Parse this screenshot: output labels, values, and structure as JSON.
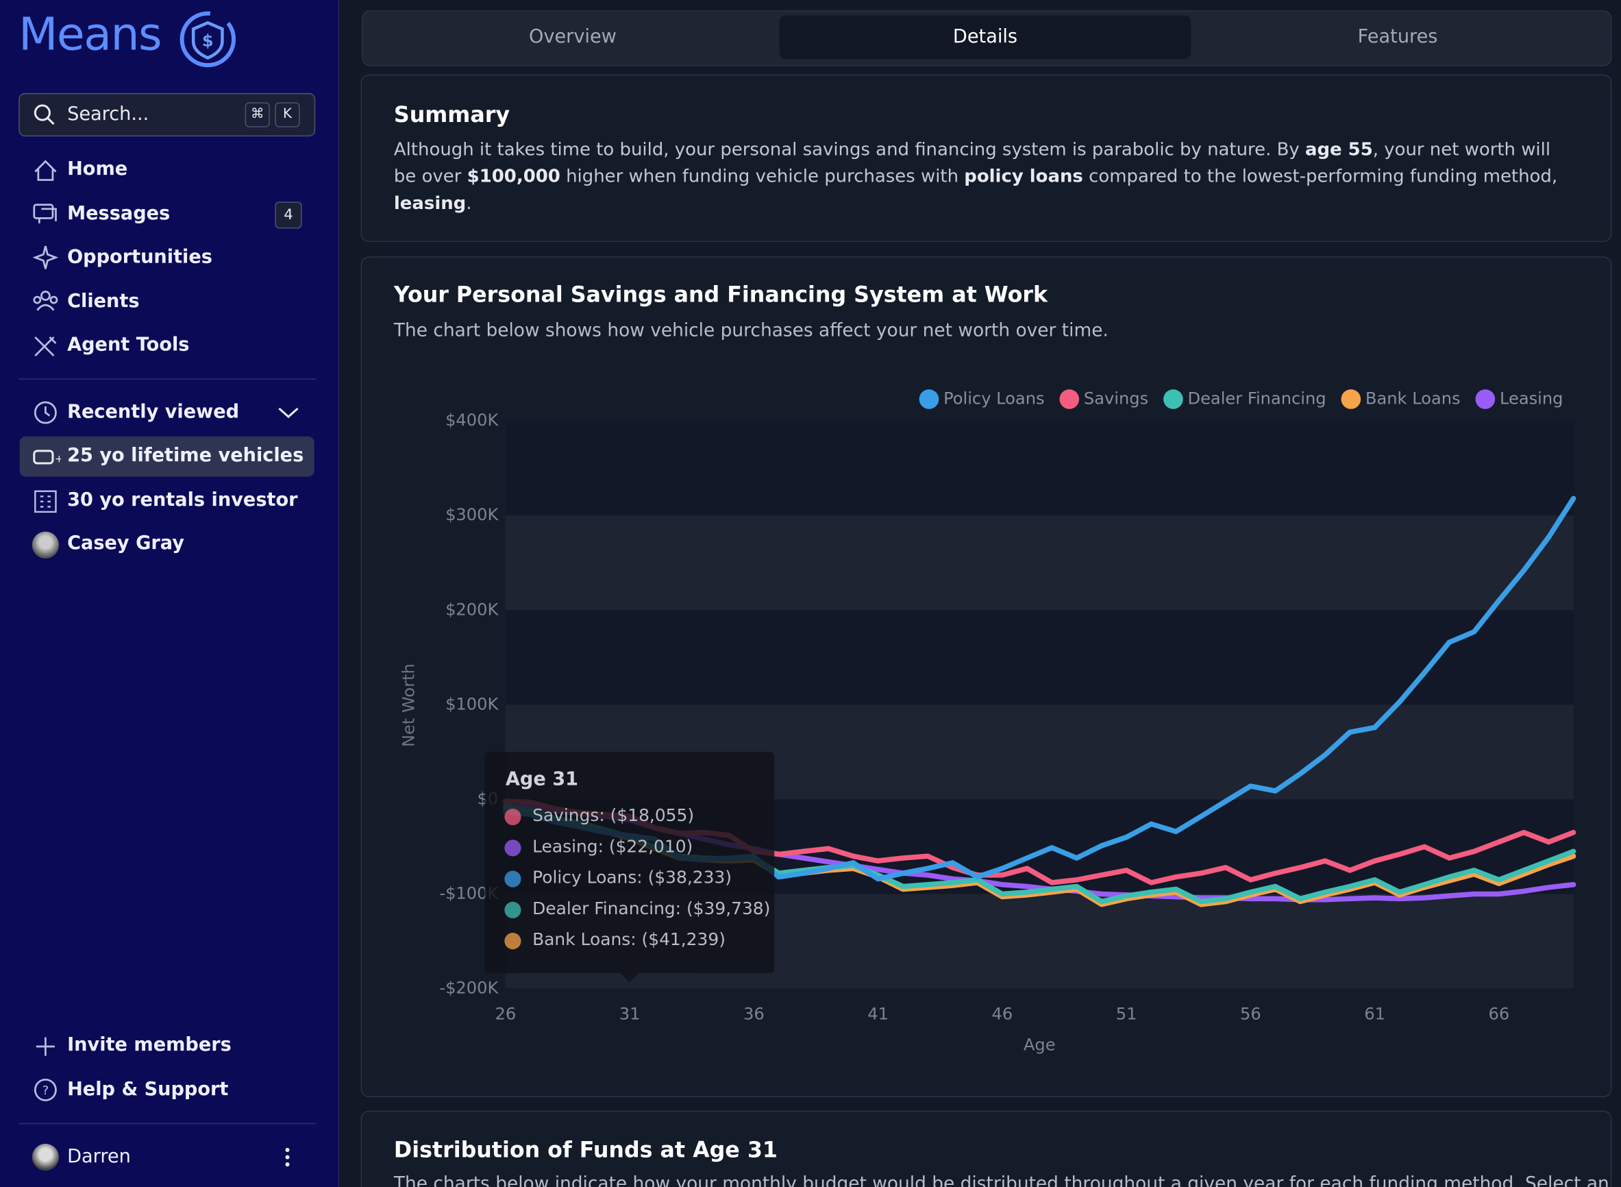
{
  "sidebar": {
    "logo": "Means",
    "search": "Search...",
    "shortcut": [
      "⌘",
      "K"
    ],
    "nav": [
      "Home",
      "Messages",
      "Opportunities",
      "Clients",
      "Agent Tools"
    ],
    "messages_badge": "4",
    "recent_label": "Recently viewed",
    "recent": [
      "25 yo lifetime vehicles",
      "30 yo rentals investor",
      "Casey Gray"
    ],
    "footer": [
      "Invite members",
      "Help & Support"
    ],
    "user": "Darren"
  },
  "tabs": [
    "Overview",
    "Details",
    "Features"
  ],
  "summary": {
    "title": "Summary",
    "text": [
      "Although it takes time to build, your personal savings and financing system is parabolic by nature. By ",
      "age 55",
      ", your net worth will be over ",
      "$100,000",
      " higher when funding vehicle purchases with ",
      "policy loans",
      " compared to the lowest-performing funding method, ",
      "leasing",
      "."
    ]
  },
  "chart_section": {
    "title": "Your Personal Savings and Financing System at Work",
    "subtitle": "The chart below shows how vehicle purchases affect your net worth over time."
  },
  "chart_data": {
    "type": "line",
    "y_label": "Net Worth",
    "x_label": "Age",
    "x": [
      26,
      27,
      28,
      29,
      30,
      31,
      32,
      33,
      34,
      35,
      36,
      37,
      38,
      39,
      40,
      41,
      42,
      43,
      44,
      45,
      46,
      47,
      48,
      49,
      50,
      51,
      52,
      53,
      54,
      55,
      56,
      57,
      58,
      59,
      60,
      61,
      62,
      63,
      64,
      65,
      66,
      67,
      68,
      69
    ],
    "xlim": [
      26,
      69
    ],
    "xticks": [
      26,
      31,
      36,
      41,
      46,
      51,
      56,
      61,
      66
    ],
    "ylim": [
      -200000,
      400000
    ],
    "yticks": [
      {
        "value": -200000,
        "label": "-$200K"
      },
      {
        "value": -100000,
        "label": "-$100K"
      },
      {
        "value": 0,
        "label": "$0"
      },
      {
        "value": 100000,
        "label": "$100K"
      },
      {
        "value": 200000,
        "label": "$200K"
      },
      {
        "value": 300000,
        "label": "$300K"
      },
      {
        "value": 400000,
        "label": "$400K"
      }
    ],
    "grid": "bands",
    "legend": "top-right",
    "series": [
      {
        "name": "Policy Loans",
        "color": "#3a9ee6",
        "values": [
          -13000,
          -16000,
          -24000,
          -29000,
          -35000,
          -38233,
          -42000,
          -62000,
          -64000,
          -62000,
          -60000,
          -82000,
          -78000,
          -73000,
          -67000,
          -84000,
          -78000,
          -73000,
          -67000,
          -82000,
          -73000,
          -62000,
          -51000,
          -62000,
          -49000,
          -40000,
          -26000,
          -34000,
          -18000,
          -2000,
          14000,
          9000,
          27000,
          47000,
          71000,
          76000,
          103000,
          134000,
          166000,
          177000,
          210000,
          242000,
          277000,
          318000
        ]
      },
      {
        "name": "Savings",
        "color": "#f45c80",
        "values": [
          -2000,
          -3000,
          -10000,
          -14000,
          -16000,
          -18055,
          -30000,
          -36000,
          -35000,
          -38000,
          -55000,
          -58000,
          -55000,
          -52000,
          -60000,
          -65000,
          -62000,
          -60000,
          -72000,
          -80000,
          -80000,
          -73000,
          -88000,
          -85000,
          -80000,
          -75000,
          -88000,
          -82000,
          -78000,
          -72000,
          -85000,
          -78000,
          -72000,
          -65000,
          -75000,
          -65000,
          -58000,
          -50000,
          -62000,
          -55000,
          -45000,
          -35000,
          -45000,
          -35000
        ]
      },
      {
        "name": "Dealer Financing",
        "color": "#3dbfb3",
        "values": [
          -8000,
          -12000,
          -20000,
          -25000,
          -32000,
          -39738,
          -50000,
          -60000,
          -62000,
          -63000,
          -62000,
          -78000,
          -75000,
          -72000,
          -70000,
          -80000,
          -92000,
          -90000,
          -88000,
          -85000,
          -100000,
          -98000,
          -95000,
          -92000,
          -108000,
          -102000,
          -98000,
          -95000,
          -108000,
          -105000,
          -98000,
          -92000,
          -105000,
          -98000,
          -92000,
          -85000,
          -98000,
          -90000,
          -82000,
          -75000,
          -85000,
          -75000,
          -65000,
          -55000
        ]
      },
      {
        "name": "Bank Loans",
        "color": "#f6a34a",
        "values": [
          -9000,
          -13000,
          -21000,
          -27000,
          -34000,
          -41239,
          -52000,
          -62000,
          -64000,
          -65000,
          -64000,
          -80000,
          -78000,
          -75000,
          -73000,
          -82000,
          -95000,
          -93000,
          -91000,
          -88000,
          -103000,
          -101000,
          -98000,
          -95000,
          -111000,
          -105000,
          -101000,
          -98000,
          -111000,
          -108000,
          -101000,
          -95000,
          -108000,
          -101000,
          -95000,
          -88000,
          -101000,
          -93000,
          -86000,
          -79000,
          -89000,
          -79000,
          -69000,
          -60000
        ]
      },
      {
        "name": "Leasing",
        "color": "#9a5cf6",
        "values": [
          -5000,
          -8000,
          -12000,
          -15000,
          -18000,
          -22010,
          -30000,
          -36000,
          -42000,
          -48000,
          -52000,
          -58000,
          -62000,
          -66000,
          -70000,
          -74000,
          -78000,
          -80000,
          -84000,
          -86000,
          -90000,
          -92000,
          -95000,
          -97000,
          -100000,
          -101000,
          -102000,
          -103000,
          -104000,
          -104000,
          -105000,
          -105000,
          -106000,
          -106000,
          -105000,
          -104000,
          -105000,
          -104000,
          -102000,
          -100000,
          -100000,
          -97000,
          -93000,
          -90000
        ]
      }
    ]
  },
  "tooltip": {
    "title": "Age 31",
    "items": [
      "Savings: ($18,055)",
      "Leasing: ($22,010)",
      "Policy Loans: ($38,233)",
      "Dealer Financing: ($39,738)",
      "Bank Loans: ($41,239)"
    ]
  },
  "distribution": {
    "title": "Distribution of Funds at Age 31",
    "text": "The charts below indicate how your monthly budget would be distributed throughout a given year for each funding method. Select an"
  }
}
